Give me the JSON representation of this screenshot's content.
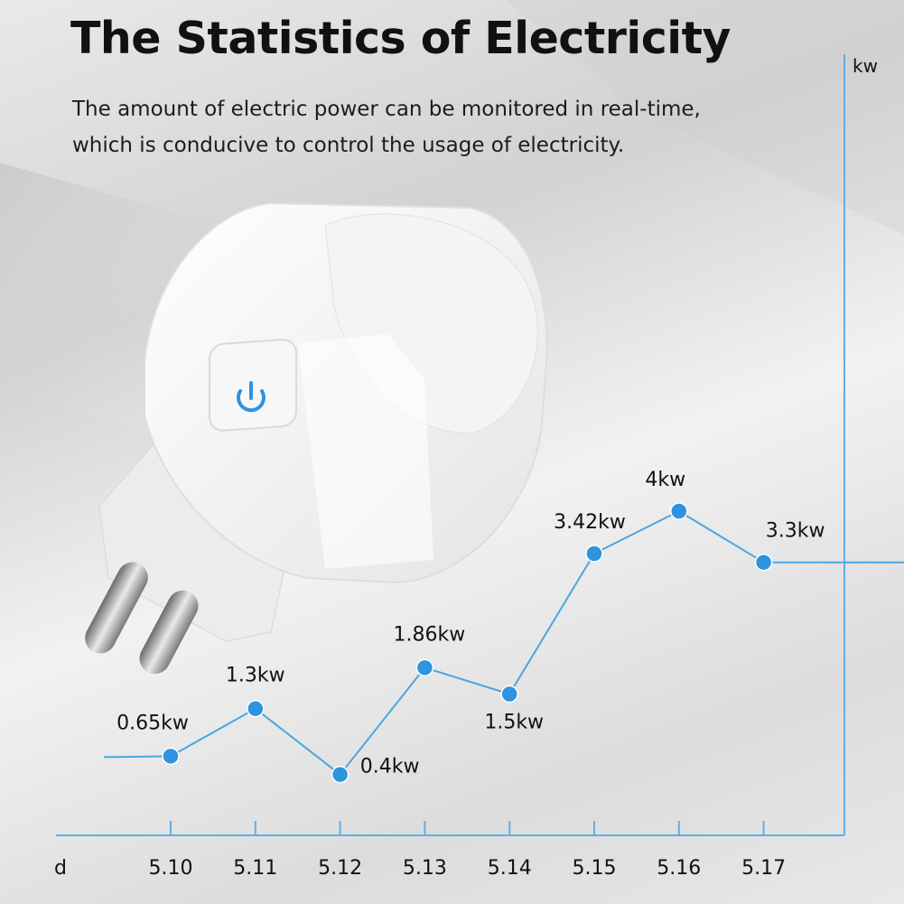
{
  "header": {
    "title": "The Statistics of Electricity",
    "subtitle_line1": "The amount of electric power can be monitored in real-time,",
    "subtitle_line2": "which is conducive to control the usage of electricity."
  },
  "chart_data": {
    "type": "line",
    "xlabel": "d",
    "ylabel": "kw",
    "categories": [
      "5.10",
      "5.11",
      "5.12",
      "5.13",
      "5.14",
      "5.15",
      "5.16",
      "5.17"
    ],
    "values": [
      0.65,
      1.3,
      0.4,
      1.86,
      1.5,
      3.42,
      4,
      3.3
    ],
    "data_labels": [
      "0.65kw",
      "1.3kw",
      "0.4kw",
      "1.86kw",
      "1.5kw",
      "3.42kw",
      "4kw",
      "3.3kw"
    ],
    "ylim": [
      0,
      4.5
    ],
    "grid": false,
    "colors": {
      "line": "#4aa6e0",
      "point": "#2f93df",
      "axis": "#5fb0e3"
    }
  }
}
